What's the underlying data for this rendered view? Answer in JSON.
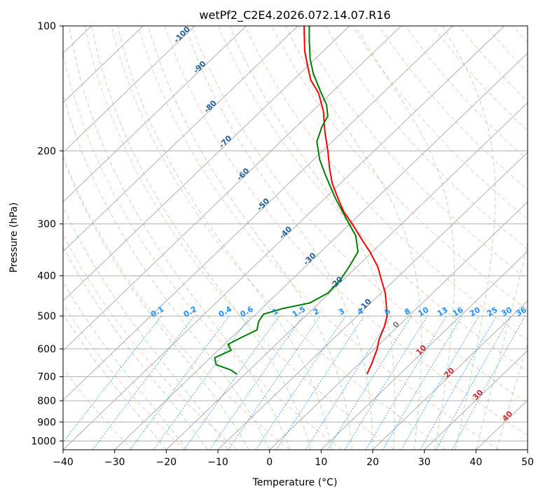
{
  "chart_data": {
    "type": "line",
    "subtype": "skew-t log-p diagram",
    "title": "wetPf2_C2E4.2026.072.14.07.R16",
    "xlabel": "Temperature (°C)",
    "ylabel": "Pressure (hPa)",
    "xlim": [
      -40,
      50
    ],
    "ylim": [
      1050,
      100
    ],
    "x_ticks": [
      -40,
      -30,
      -20,
      -10,
      0,
      10,
      20,
      30,
      40,
      50
    ],
    "x_tick_labels": [
      "−40",
      "−30",
      "−20",
      "−10",
      "0",
      "10",
      "20",
      "30",
      "40",
      "50"
    ],
    "y_ticks": [
      100,
      200,
      300,
      400,
      500,
      600,
      700,
      800,
      900,
      1000
    ],
    "y_tick_labels": [
      "100",
      "200",
      "300",
      "400",
      "500",
      "600",
      "700",
      "800",
      "900",
      "1000"
    ],
    "grid": true,
    "series": [
      {
        "name": "temperature",
        "color": "#ff0000",
        "points": [
          {
            "p": 690,
            "t": 3.6
          },
          {
            "p": 650,
            "t": 2.4
          },
          {
            "p": 600,
            "t": 0.5
          },
          {
            "p": 570,
            "t": -1.0
          },
          {
            "p": 530,
            "t": -2.6
          },
          {
            "p": 500,
            "t": -4.2
          },
          {
            "p": 470,
            "t": -6.6
          },
          {
            "p": 440,
            "t": -9.2
          },
          {
            "p": 410,
            "t": -12.5
          },
          {
            "p": 380,
            "t": -16.0
          },
          {
            "p": 350,
            "t": -20.5
          },
          {
            "p": 330,
            "t": -24.0
          },
          {
            "p": 300,
            "t": -29.5
          },
          {
            "p": 280,
            "t": -33.7
          },
          {
            "p": 260,
            "t": -37.5
          },
          {
            "p": 240,
            "t": -41.5
          },
          {
            "p": 220,
            "t": -45.2
          },
          {
            "p": 200,
            "t": -49.0
          },
          {
            "p": 180,
            "t": -53.4
          },
          {
            "p": 160,
            "t": -58.0
          },
          {
            "p": 145,
            "t": -62.5
          },
          {
            "p": 135,
            "t": -66.6
          },
          {
            "p": 125,
            "t": -70.0
          },
          {
            "p": 115,
            "t": -73.6
          },
          {
            "p": 100,
            "t": -78.8
          }
        ]
      },
      {
        "name": "dewpoint",
        "color": "#008000",
        "points": [
          {
            "p": 690,
            "t": -21.6
          },
          {
            "p": 675,
            "t": -23.5
          },
          {
            "p": 655,
            "t": -27.5
          },
          {
            "p": 630,
            "t": -29.2
          },
          {
            "p": 605,
            "t": -27.5
          },
          {
            "p": 585,
            "t": -29.3
          },
          {
            "p": 565,
            "t": -28.2
          },
          {
            "p": 540,
            "t": -26.6
          },
          {
            "p": 515,
            "t": -28.0
          },
          {
            "p": 495,
            "t": -28.5
          },
          {
            "p": 480,
            "t": -26.0
          },
          {
            "p": 465,
            "t": -21.8
          },
          {
            "p": 440,
            "t": -20.3
          },
          {
            "p": 410,
            "t": -20.5
          },
          {
            "p": 380,
            "t": -21.5
          },
          {
            "p": 350,
            "t": -22.8
          },
          {
            "p": 320,
            "t": -26.5
          },
          {
            "p": 290,
            "t": -32.0
          },
          {
            "p": 260,
            "t": -38.0
          },
          {
            "p": 230,
            "t": -44.3
          },
          {
            "p": 210,
            "t": -48.8
          },
          {
            "p": 190,
            "t": -53.0
          },
          {
            "p": 175,
            "t": -55.0
          },
          {
            "p": 165,
            "t": -56.0
          },
          {
            "p": 155,
            "t": -58.5
          },
          {
            "p": 145,
            "t": -62.0
          },
          {
            "p": 130,
            "t": -67.5
          },
          {
            "p": 120,
            "t": -71.0
          },
          {
            "p": 108,
            "t": -75.0
          },
          {
            "p": 100,
            "t": -77.8
          }
        ]
      }
    ],
    "mixing_ratio_lines": {
      "label_pressure": 500,
      "values": [
        0.1,
        0.2,
        0.4,
        0.6,
        1,
        1.5,
        2,
        3,
        4,
        6,
        8,
        10,
        13,
        16,
        20,
        25,
        30,
        36
      ],
      "labels": [
        "0.1",
        "0.2",
        "0.4",
        "0.6",
        "1",
        "1.5",
        "2",
        "3",
        "4",
        "6",
        "8",
        "10",
        "13",
        "16",
        "20",
        "25",
        "30",
        "36"
      ]
    },
    "dry_adiabat_labels": [
      {
        "text": "-100",
        "p": 106,
        "t": -100
      },
      {
        "text": "-90",
        "p": 127,
        "t": -90
      },
      {
        "text": "-80",
        "p": 158,
        "t": -80
      },
      {
        "text": "-70",
        "p": 192,
        "t": -70
      },
      {
        "text": "-60",
        "p": 230,
        "t": -60
      },
      {
        "text": "-50",
        "p": 272,
        "t": -50
      },
      {
        "text": "-40",
        "p": 318,
        "t": -40
      },
      {
        "text": "-30",
        "p": 368,
        "t": -30
      },
      {
        "text": "-20",
        "p": 420,
        "t": -20
      },
      {
        "text": "-10",
        "p": 475,
        "t": -10
      }
    ],
    "moist_adiabat_labels": [
      {
        "text": "0",
        "p": 530,
        "t": 0
      },
      {
        "text": "10",
        "p": 610,
        "t": 10
      },
      {
        "text": "20",
        "p": 692,
        "t": 20
      },
      {
        "text": "30",
        "p": 782,
        "t": 30
      },
      {
        "text": "40",
        "p": 880,
        "t": 40
      }
    ]
  }
}
